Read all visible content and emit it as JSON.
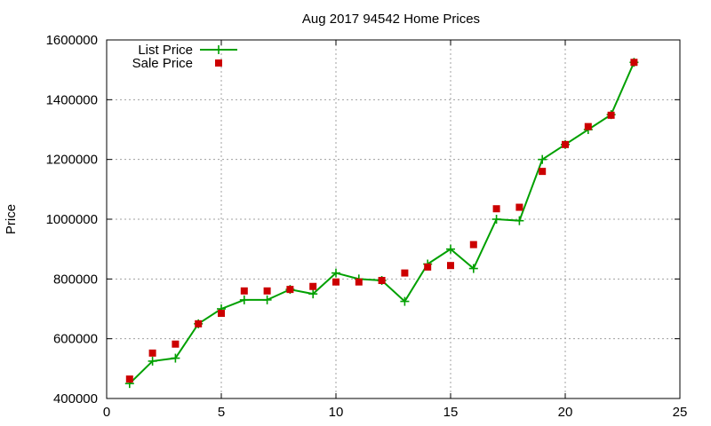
{
  "chart_data": {
    "type": "line",
    "title": "Aug 2017 94542 Home Prices",
    "xlabel": "",
    "ylabel": "Price",
    "xlim": [
      0,
      25
    ],
    "ylim": [
      400000,
      1600000
    ],
    "x_ticks": [
      0,
      5,
      10,
      15,
      20,
      25
    ],
    "y_ticks": [
      400000,
      600000,
      800000,
      1000000,
      1200000,
      1400000,
      1600000
    ],
    "grid": true,
    "legend_position": "top-left",
    "series": [
      {
        "name": "List Price",
        "style": "line+cross",
        "color": "#00a000",
        "x": [
          1,
          2,
          3,
          4,
          5,
          6,
          7,
          8,
          9,
          10,
          11,
          12,
          13,
          14,
          15,
          16,
          17,
          18,
          19,
          20,
          21,
          22,
          23
        ],
        "y": [
          450000,
          525000,
          535000,
          650000,
          700000,
          730000,
          730000,
          765000,
          750000,
          820000,
          800000,
          795000,
          725000,
          850000,
          900000,
          835000,
          1000000,
          995000,
          1200000,
          1250000,
          1300000,
          1350000,
          1525000
        ]
      },
      {
        "name": "Sale Price",
        "style": "square",
        "color": "#cc0000",
        "x": [
          1,
          2,
          3,
          4,
          5,
          6,
          7,
          8,
          9,
          10,
          11,
          12,
          13,
          14,
          15,
          16,
          17,
          18,
          19,
          20,
          21,
          22,
          23
        ],
        "y": [
          465000,
          552000,
          582000,
          650000,
          685000,
          760000,
          760000,
          765000,
          775000,
          790000,
          790000,
          795000,
          820000,
          840000,
          845000,
          915000,
          1035000,
          1040000,
          1160000,
          1250000,
          1310000,
          1348000,
          1525000
        ]
      }
    ]
  }
}
